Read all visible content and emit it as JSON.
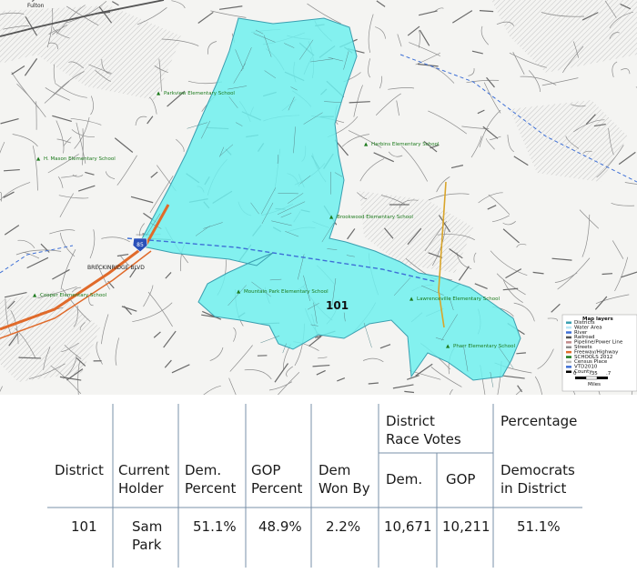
{
  "map": {
    "corner_labels": [
      "Fulton"
    ],
    "district_label": "101",
    "road_labels": [
      "BRECKINRIDGE BLVD"
    ],
    "interstate_label": "85",
    "schools": [
      "Parkview Elementary School",
      "H. Mason Elementary School",
      "Harbins Elementary School",
      "Brookwood Elementary School",
      "Mountain Park Elementary School",
      "Lawrenceville Elementary School",
      "Pharr Elementary School",
      "Cooper Elementary School"
    ],
    "legend": {
      "title": "Map layers",
      "items": [
        "Districts",
        "Water Area",
        "River",
        "Railroad",
        "Pipeline/Power Line",
        "Streets",
        "Freeway/Highway",
        "SCHOOLS 2012",
        "Census Place",
        "VTD2010",
        "County"
      ],
      "scale_label": "Miles",
      "scale_ticks": [
        "0",
        ".35",
        ".7"
      ]
    },
    "colors": {
      "district_fill": "#6ef0ee",
      "district_stroke": "#3a9fb0",
      "street": "#8a8a8a",
      "highway": "#e06a2a",
      "school": "#1c7a1c"
    }
  },
  "table": {
    "headers": {
      "district": [
        "District"
      ],
      "holder": [
        "Current",
        "Holder"
      ],
      "dem_pct": [
        "Dem.",
        "Percent"
      ],
      "gop_pct": [
        "GOP",
        "Percent"
      ],
      "dem_won_by": [
        "Dem",
        "Won By"
      ],
      "race_votes_group": [
        "District",
        "Race Votes"
      ],
      "dem_votes": [
        "Dem."
      ],
      "gop_votes": [
        "GOP"
      ],
      "pct_group": [
        "Percentage"
      ],
      "democrats": [
        "Democrats",
        "in District"
      ]
    },
    "row": {
      "district": "101",
      "holder": [
        "Sam",
        "Park"
      ],
      "dem_pct": "51.1%",
      "gop_pct": "48.9%",
      "dem_won_by": "2.2%",
      "dem_votes": "10,671",
      "gop_votes": "10,211",
      "democrats": "51.1%"
    }
  }
}
